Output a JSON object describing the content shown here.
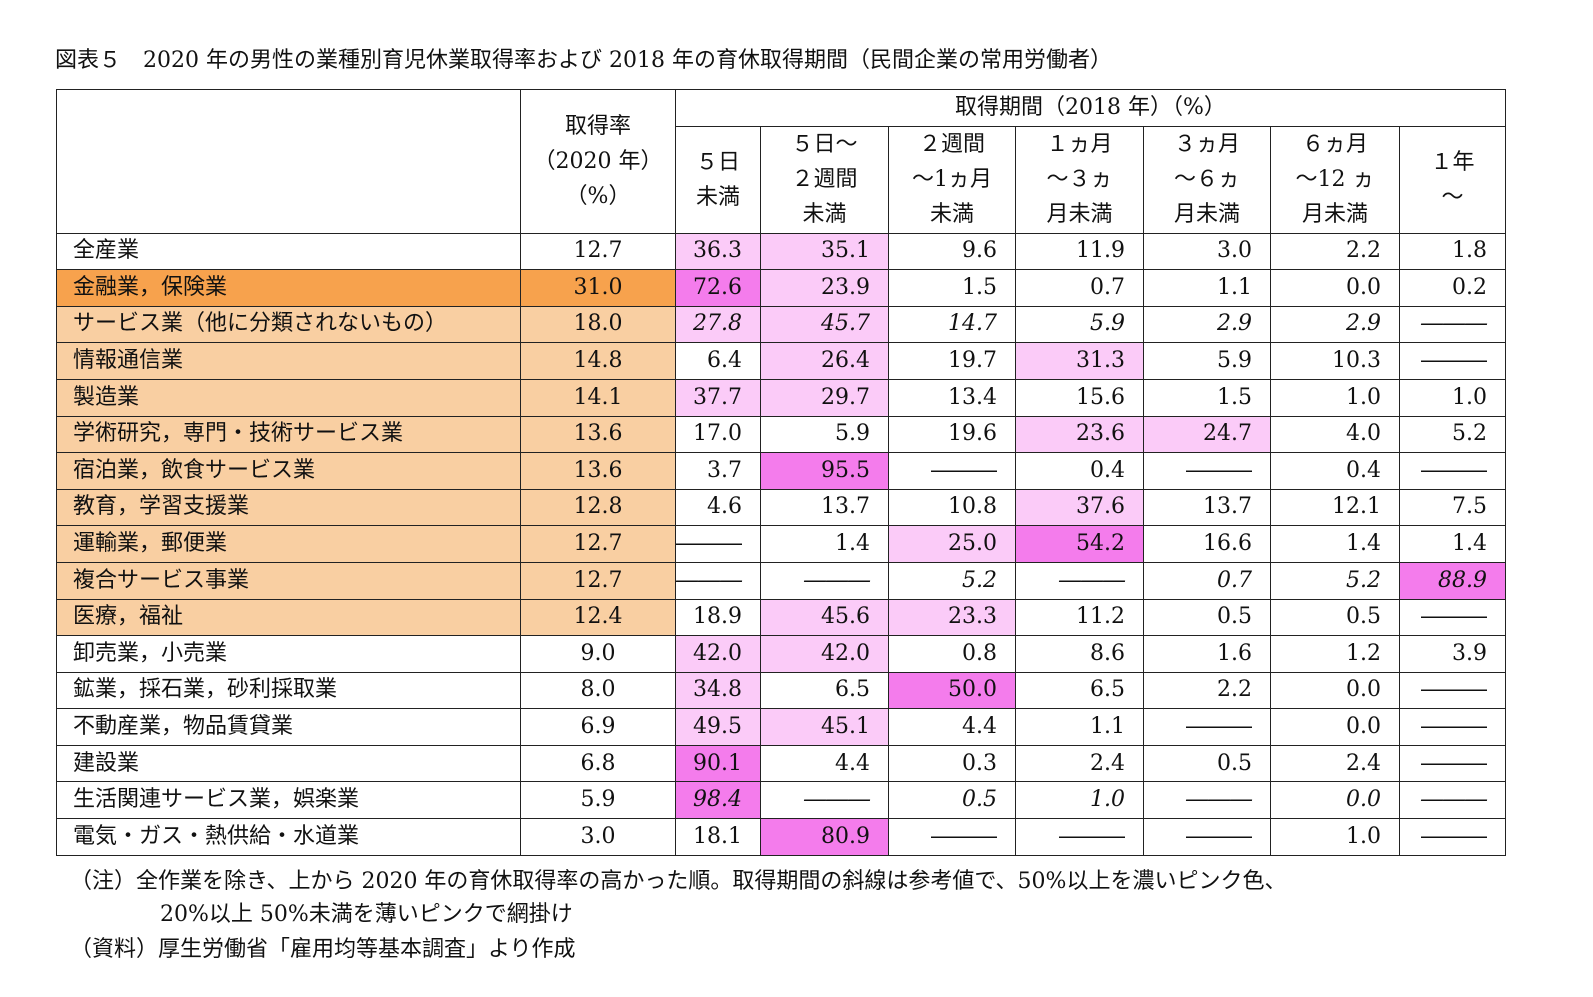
{
  "title": "図表５　2020 年の男性の業種別育児休業取得率および 2018 年の育休取得期間（民間企業の常用労働者）",
  "header": {
    "rate": [
      "取得率",
      "（2020 年）",
      "（%）"
    ],
    "period_group": "取得期間（2018 年）（%）",
    "periods": [
      [
        "５日",
        "未満"
      ],
      [
        "５日～",
        "２週間",
        "未満"
      ],
      [
        "２週間",
        "～1ヵ月",
        "未満"
      ],
      [
        "１ヵ月",
        "～３ヵ",
        "月未満"
      ],
      [
        "３ヵ月",
        "～６ヵ",
        "月未満"
      ],
      [
        "６ヵ月",
        "～12 ヵ",
        "月未満"
      ],
      [
        "１年",
        "～"
      ]
    ]
  },
  "rows": [
    {
      "industry": "全産業",
      "rate": "12.7",
      "values": [
        "36.3",
        "35.1",
        "9.6",
        "11.9",
        "3.0",
        "2.2",
        "1.8"
      ],
      "label_fill": "none",
      "italic": false,
      "highlight": [
        "light",
        "light",
        "",
        "",
        "",
        "",
        ""
      ]
    },
    {
      "industry": "金融業，保険業",
      "rate": "31.0",
      "values": [
        "72.6",
        "23.9",
        "1.5",
        "0.7",
        "1.1",
        "0.0",
        "0.2"
      ],
      "label_fill": "orange",
      "italic": false,
      "highlight": [
        "dark",
        "light",
        "",
        "",
        "",
        "",
        ""
      ]
    },
    {
      "industry": "サービス業（他に分類されないもの）",
      "rate": "18.0",
      "values": [
        "27.8",
        "45.7",
        "14.7",
        "5.9",
        "2.9",
        "2.9",
        "―――"
      ],
      "label_fill": "peach",
      "italic": true,
      "highlight": [
        "light",
        "light",
        "",
        "",
        "",
        "",
        ""
      ]
    },
    {
      "industry": "情報通信業",
      "rate": "14.8",
      "values": [
        "6.4",
        "26.4",
        "19.7",
        "31.3",
        "5.9",
        "10.3",
        "―――"
      ],
      "label_fill": "peach",
      "italic": false,
      "highlight": [
        "",
        "light",
        "",
        "light",
        "",
        "",
        ""
      ]
    },
    {
      "industry": "製造業",
      "rate": "14.1",
      "values": [
        "37.7",
        "29.7",
        "13.4",
        "15.6",
        "1.5",
        "1.0",
        "1.0"
      ],
      "label_fill": "peach",
      "italic": false,
      "highlight": [
        "light",
        "light",
        "",
        "",
        "",
        "",
        ""
      ]
    },
    {
      "industry": "学術研究，専門・技術サービス業",
      "rate": "13.6",
      "values": [
        "17.0",
        "5.9",
        "19.6",
        "23.6",
        "24.7",
        "4.0",
        "5.2"
      ],
      "label_fill": "peach",
      "italic": false,
      "highlight": [
        "",
        "",
        "",
        "light",
        "light",
        "",
        ""
      ]
    },
    {
      "industry": "宿泊業，飲食サービス業",
      "rate": "13.6",
      "values": [
        "3.7",
        "95.5",
        "―――",
        "0.4",
        "―――",
        "0.4",
        "―――"
      ],
      "label_fill": "peach",
      "italic": false,
      "highlight": [
        "",
        "dark",
        "",
        "",
        "",
        "",
        ""
      ]
    },
    {
      "industry": "教育，学習支援業",
      "rate": "12.8",
      "values": [
        "4.6",
        "13.7",
        "10.8",
        "37.6",
        "13.7",
        "12.1",
        "7.5"
      ],
      "label_fill": "peach",
      "italic": false,
      "highlight": [
        "",
        "",
        "",
        "light",
        "",
        "",
        ""
      ]
    },
    {
      "industry": "運輸業，郵便業",
      "rate": "12.7",
      "values": [
        "―――",
        "1.4",
        "25.0",
        "54.2",
        "16.6",
        "1.4",
        "1.4"
      ],
      "label_fill": "peach",
      "italic": false,
      "highlight": [
        "",
        "",
        "light",
        "dark",
        "",
        "",
        ""
      ]
    },
    {
      "industry": "複合サービス事業",
      "rate": "12.7",
      "values": [
        "―――",
        "―――",
        "5.2",
        "―――",
        "0.7",
        "5.2",
        "88.9"
      ],
      "label_fill": "peach",
      "italic": true,
      "highlight": [
        "",
        "",
        "",
        "",
        "",
        "",
        "dark"
      ]
    },
    {
      "industry": "医療，福祉",
      "rate": "12.4",
      "values": [
        "18.9",
        "45.6",
        "23.3",
        "11.2",
        "0.5",
        "0.5",
        "―――"
      ],
      "label_fill": "peach",
      "italic": false,
      "highlight": [
        "",
        "light",
        "light",
        "",
        "",
        "",
        ""
      ]
    },
    {
      "industry": "卸売業，小売業",
      "rate": "9.0",
      "values": [
        "42.0",
        "42.0",
        "0.8",
        "8.6",
        "1.6",
        "1.2",
        "3.9"
      ],
      "label_fill": "none",
      "italic": false,
      "highlight": [
        "light",
        "light",
        "",
        "",
        "",
        "",
        ""
      ]
    },
    {
      "industry": "鉱業，採石業，砂利採取業",
      "rate": "8.0",
      "values": [
        "34.8",
        "6.5",
        "50.0",
        "6.5",
        "2.2",
        "0.0",
        "―――"
      ],
      "label_fill": "none",
      "italic": false,
      "highlight": [
        "light",
        "",
        "dark",
        "",
        "",
        "",
        ""
      ]
    },
    {
      "industry": "不動産業，物品賃貸業",
      "rate": "6.9",
      "values": [
        "49.5",
        "45.1",
        "4.4",
        "1.1",
        "―――",
        "0.0",
        "―――"
      ],
      "label_fill": "none",
      "italic": false,
      "highlight": [
        "light",
        "light",
        "",
        "",
        "",
        "",
        ""
      ]
    },
    {
      "industry": "建設業",
      "rate": "6.8",
      "values": [
        "90.1",
        "4.4",
        "0.3",
        "2.4",
        "0.5",
        "2.4",
        "―――"
      ],
      "label_fill": "none",
      "italic": false,
      "highlight": [
        "dark",
        "",
        "",
        "",
        "",
        "",
        ""
      ]
    },
    {
      "industry": "生活関連サービス業，娯楽業",
      "rate": "5.9",
      "values": [
        "98.4",
        "―――",
        "0.5",
        "1.0",
        "―――",
        "0.0",
        "―――"
      ],
      "label_fill": "none",
      "italic": true,
      "highlight": [
        "dark",
        "",
        "",
        "",
        "",
        "",
        ""
      ]
    },
    {
      "industry": "電気・ガス・熱供給・水道業",
      "rate": "3.0",
      "values": [
        "18.1",
        "80.9",
        "―――",
        "―――",
        "―――",
        "1.0",
        "―――"
      ],
      "label_fill": "none",
      "italic": false,
      "highlight": [
        "",
        "dark",
        "",
        "",
        "",
        "",
        ""
      ]
    }
  ],
  "notes": {
    "line1": "（注）全作業を除き、上から 2020 年の育休取得率の高かった順。取得期間の斜線は参考値で、50%以上を濃いピンク色、",
    "line2": "20%以上 50%未満を薄いピンクで網掛け",
    "line3": "（資料）厚生労働省「雇用均等基本調査」より作成"
  },
  "colors": {
    "dark_pink": "#f47cec",
    "light_pink": "#fbcbf8",
    "orange": "#f7a24d",
    "peach": "#f9cfa2"
  }
}
